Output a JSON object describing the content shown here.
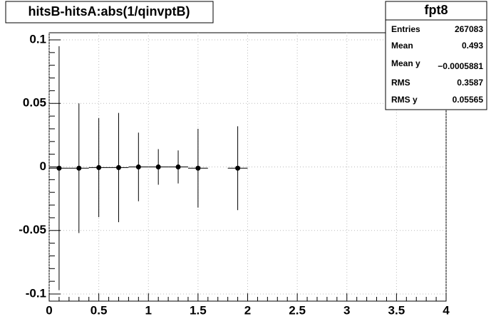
{
  "chart_data": {
    "type": "profile",
    "title": "hitsB-hitsA:abs(1/qinvptB)",
    "x": [
      0.1,
      0.3,
      0.5,
      0.7,
      0.9,
      1.1,
      1.3,
      1.5,
      1.9
    ],
    "values": [
      -0.001,
      -0.001,
      -0.0005,
      -0.0005,
      0,
      0,
      0,
      -0.001,
      -0.001
    ],
    "errors": [
      0.096,
      0.051,
      0.039,
      0.043,
      0.027,
      0.014,
      0.013,
      0.031,
      0.033
    ],
    "xerr": [
      0.1,
      0.1,
      0.1,
      0.1,
      0.1,
      0.1,
      0.1,
      0.1,
      0.1
    ],
    "color": "#000000",
    "xlim": [
      0,
      4
    ],
    "xticks": [
      0,
      0.5,
      1,
      1.5,
      2,
      2.5,
      3,
      3.5,
      4
    ],
    "ylim": [
      -0.1056,
      0.1056
    ],
    "yticks": [
      -0.1,
      -0.05,
      0,
      0.05,
      0.1
    ],
    "grid": true,
    "stats": {
      "title": "fpt8",
      "rows": [
        [
          "Entries",
          "267083"
        ],
        [
          "Mean",
          "0.493"
        ],
        [
          "Mean y",
          "−0.0005881"
        ],
        [
          "RMS",
          "0.3587"
        ],
        [
          "RMS y",
          "0.05565"
        ]
      ]
    }
  }
}
